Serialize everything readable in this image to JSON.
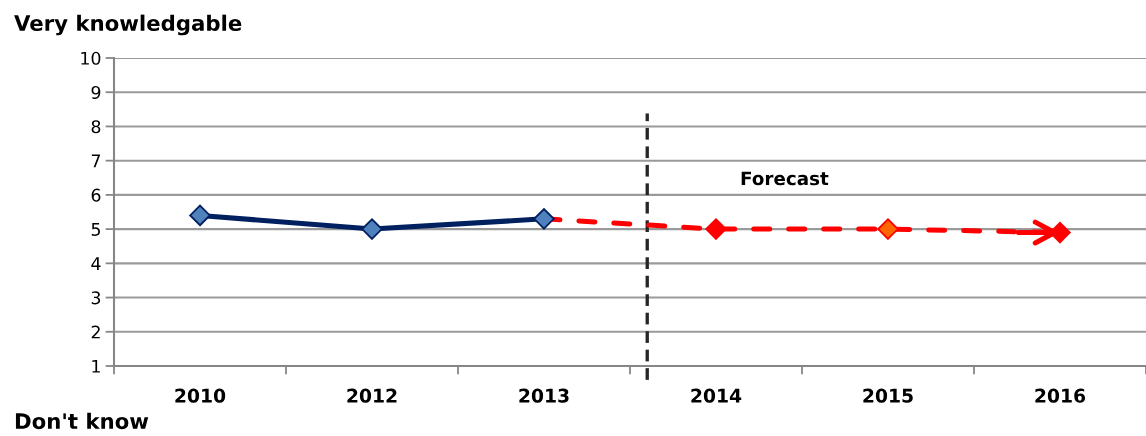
{
  "chart_data": {
    "type": "line",
    "categories": [
      "2010",
      "2012",
      "2013",
      "2014",
      "2015",
      "2016"
    ],
    "series": [
      {
        "color": "#002060",
        "line_style": "solid",
        "values": [
          5.4,
          5.0,
          5.3,
          null,
          null,
          null
        ],
        "colors": [
          "#4f81bd",
          "#4f81bd",
          "#4f81bd",
          null,
          null,
          null
        ]
      },
      {
        "color": "#ff0000",
        "line_style": "dashed",
        "values": [
          null,
          null,
          5.3,
          5.0,
          5.0,
          4.9
        ],
        "colors": [
          null,
          null,
          null,
          "#ff0000",
          "#ff6600",
          "#ff0000"
        ]
      }
    ],
    "ylim": [
      1,
      10
    ],
    "yticks": [
      1,
      2,
      3,
      4,
      5,
      6,
      7,
      8,
      9,
      10
    ],
    "grid": "y",
    "marker": "diamond",
    "legend": false,
    "annotations": [
      "Very knowledgable",
      "Forecast",
      "Don't know"
    ]
  }
}
